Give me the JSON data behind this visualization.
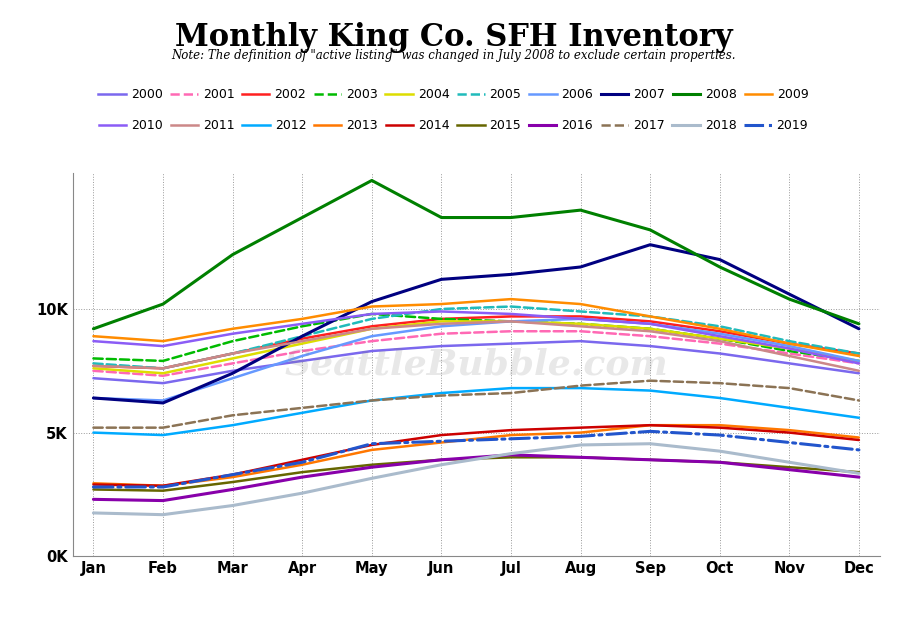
{
  "title": "Monthly King Co. SFH Inventory",
  "subtitle": "Note: The definition of \"active listing\" was changed in July 2008 to exclude certain properties.",
  "months": [
    "Jan",
    "Feb",
    "Mar",
    "Apr",
    "May",
    "Jun",
    "Jul",
    "Aug",
    "Sep",
    "Oct",
    "Nov",
    "Dec"
  ],
  "series": {
    "2000": {
      "color": "#7B68EE",
      "dash": "solid",
      "lw": 1.8,
      "values": [
        7200,
        7000,
        7500,
        7900,
        8300,
        8500,
        8600,
        8700,
        8500,
        8200,
        7800,
        7400
      ]
    },
    "2001": {
      "color": "#FF69B4",
      "dash": "dashed",
      "lw": 1.8,
      "values": [
        7500,
        7300,
        7800,
        8300,
        8700,
        9000,
        9100,
        9100,
        8900,
        8600,
        8200,
        7800
      ]
    },
    "2002": {
      "color": "#FF2020",
      "dash": "solid",
      "lw": 1.8,
      "values": [
        7700,
        7600,
        8200,
        8800,
        9300,
        9600,
        9700,
        9700,
        9500,
        9100,
        8600,
        8200
      ]
    },
    "2003": {
      "color": "#00BB00",
      "dash": "dashed",
      "lw": 1.8,
      "values": [
        8000,
        7900,
        8700,
        9300,
        9800,
        9600,
        9500,
        9400,
        9200,
        8800,
        8300,
        7900
      ]
    },
    "2004": {
      "color": "#DDDD00",
      "dash": "solid",
      "lw": 1.8,
      "values": [
        7600,
        7400,
        8000,
        8600,
        9200,
        9500,
        9500,
        9400,
        9200,
        8800,
        8400,
        7900
      ]
    },
    "2005": {
      "color": "#20BBBB",
      "dash": "dashed",
      "lw": 1.8,
      "values": [
        7800,
        7600,
        8200,
        8900,
        9600,
        10000,
        10100,
        9900,
        9700,
        9300,
        8700,
        8200
      ]
    },
    "2006": {
      "color": "#6699FF",
      "dash": "solid",
      "lw": 1.8,
      "values": [
        6400,
        6300,
        7200,
        8100,
        8900,
        9300,
        9500,
        9600,
        9400,
        9000,
        8500,
        7900
      ]
    },
    "2007": {
      "color": "#000080",
      "dash": "solid",
      "lw": 2.2,
      "values": [
        6400,
        6200,
        7400,
        8900,
        10300,
        11200,
        11400,
        11700,
        12600,
        12000,
        10600,
        9200
      ]
    },
    "2008": {
      "color": "#008000",
      "dash": "solid",
      "lw": 2.2,
      "values": [
        9200,
        10200,
        12200,
        13700,
        15200,
        13700,
        13700,
        14000,
        13200,
        11700,
        10400,
        9400
      ]
    },
    "2009": {
      "color": "#FF8C00",
      "dash": "solid",
      "lw": 1.8,
      "values": [
        8900,
        8700,
        9200,
        9600,
        10100,
        10200,
        10400,
        10200,
        9700,
        9200,
        8600,
        8100
      ]
    },
    "2010": {
      "color": "#8B5CF6",
      "dash": "solid",
      "lw": 1.8,
      "values": [
        8700,
        8500,
        9000,
        9400,
        9800,
        9900,
        9800,
        9600,
        9400,
        8900,
        8400,
        7800
      ]
    },
    "2011": {
      "color": "#CC8888",
      "dash": "solid",
      "lw": 1.8,
      "values": [
        7700,
        7600,
        8200,
        8700,
        9200,
        9400,
        9500,
        9300,
        9100,
        8700,
        8100,
        7500
      ]
    },
    "2012": {
      "color": "#00AAFF",
      "dash": "solid",
      "lw": 1.8,
      "values": [
        5000,
        4900,
        5300,
        5800,
        6300,
        6600,
        6800,
        6800,
        6700,
        6400,
        6000,
        5600
      ]
    },
    "2013": {
      "color": "#FF7700",
      "dash": "solid",
      "lw": 1.8,
      "values": [
        2950,
        2850,
        3200,
        3700,
        4300,
        4600,
        4900,
        5000,
        5300,
        5300,
        5100,
        4800
      ]
    },
    "2014": {
      "color": "#CC0000",
      "dash": "solid",
      "lw": 1.8,
      "values": [
        2900,
        2850,
        3300,
        3900,
        4500,
        4900,
        5100,
        5200,
        5300,
        5200,
        5000,
        4700
      ]
    },
    "2015": {
      "color": "#666600",
      "dash": "solid",
      "lw": 1.8,
      "values": [
        2700,
        2650,
        3000,
        3400,
        3700,
        3900,
        4000,
        4000,
        3900,
        3800,
        3600,
        3400
      ]
    },
    "2016": {
      "color": "#8800AA",
      "dash": "solid",
      "lw": 2.2,
      "values": [
        2300,
        2250,
        2700,
        3200,
        3600,
        3900,
        4100,
        4000,
        3900,
        3800,
        3500,
        3200
      ]
    },
    "2017": {
      "color": "#8B7355",
      "dash": "dashed",
      "lw": 1.8,
      "values": [
        5200,
        5200,
        5700,
        6000,
        6300,
        6500,
        6600,
        6900,
        7100,
        7000,
        6800,
        6300
      ]
    },
    "2018": {
      "color": "#AABBCC",
      "dash": "solid",
      "lw": 2.2,
      "values": [
        1750,
        1680,
        2050,
        2550,
        3150,
        3700,
        4150,
        4500,
        4550,
        4250,
        3800,
        3350
      ]
    },
    "2019": {
      "color": "#2255CC",
      "dash": "dashdot",
      "lw": 2.2,
      "values": [
        2800,
        2800,
        3300,
        3800,
        4550,
        4650,
        4750,
        4850,
        5050,
        4900,
        4600,
        4300
      ]
    }
  },
  "legend_row1": [
    "2000",
    "2001",
    "2002",
    "2003",
    "2004",
    "2005",
    "2006",
    "2007",
    "2008",
    "2009"
  ],
  "legend_row2": [
    "2010",
    "2011",
    "2012",
    "2013",
    "2014",
    "2015",
    "2016",
    "2017",
    "2018",
    "2019"
  ],
  "ylim": [
    0,
    15500
  ],
  "yticks": [
    0,
    5000,
    10000
  ],
  "yticklabels": [
    "0K",
    "5K",
    "10K"
  ],
  "background_color": "#ffffff",
  "watermark": "SeattleBubble.com"
}
